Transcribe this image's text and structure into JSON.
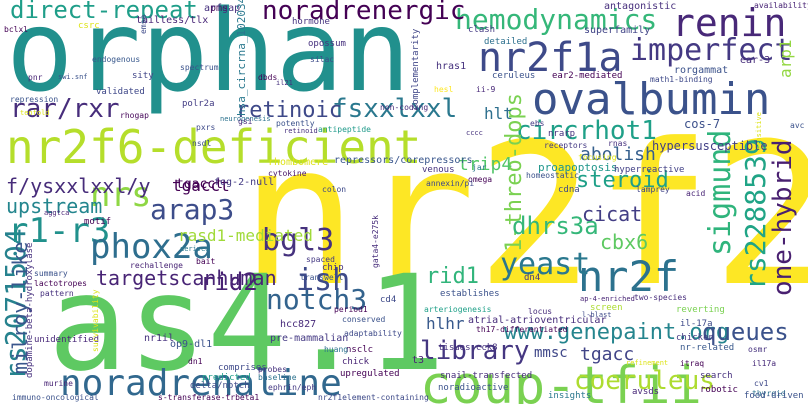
{
  "words": [
    {
      "text": "orphan",
      "color": "#21908d"
    },
    {
      "text": "nr2f2",
      "color": "#fde725"
    },
    {
      "text": "as4.1",
      "color": "#5ec962"
    },
    {
      "text": "nr2f6-deficient",
      "color": "#b5de2b"
    },
    {
      "text": "coup-tfii",
      "color": "#7ad151"
    },
    {
      "text": "ovalbumin",
      "color": "#3b528b"
    },
    {
      "text": "nr2f1a",
      "color": "#3e4a89"
    },
    {
      "text": "noradrenaline",
      "color": "#31688e"
    },
    {
      "text": "renin",
      "color": "#482878"
    },
    {
      "text": "rs2071504",
      "color": "#26828e"
    },
    {
      "text": "nr2f",
      "color": "#2c728e"
    },
    {
      "text": "hemodynamics",
      "color": "#35b779"
    },
    {
      "text": "noradrenergic",
      "color": "#440154"
    },
    {
      "text": "imperfect",
      "color": "#443983"
    },
    {
      "text": "direct-repeat",
      "color": "#1f9e89"
    },
    {
      "text": "fsxxlxxl",
      "color": "#2a788e"
    },
    {
      "text": "retinoic",
      "color": "#3e4989"
    },
    {
      "text": "rar/rxr",
      "color": "#472d7b"
    },
    {
      "text": "circrhot1",
      "color": "#1fa088"
    },
    {
      "text": "nrs",
      "color": "#8fd744"
    },
    {
      "text": "r1-r3",
      "color": "#21918c"
    },
    {
      "text": "arap3",
      "color": "#3d4d8a"
    },
    {
      "text": "bgl3",
      "color": "#46327e"
    },
    {
      "text": "phox2a",
      "color": "#2e6e8e"
    },
    {
      "text": "sigmund",
      "color": "#2fb47c"
    },
    {
      "text": "rs2288539",
      "color": "#20a486"
    },
    {
      "text": "one-hybrid",
      "color": "#481f70"
    },
    {
      "text": "yeast",
      "color": "#2a788e"
    },
    {
      "text": "library",
      "color": "#453781"
    },
    {
      "text": "coeruleus",
      "color": "#addc30"
    },
    {
      "text": "notch3",
      "color": "#33638d"
    },
    {
      "text": "ish",
      "color": "#3e4a89"
    },
    {
      "text": "www.genepaint.org",
      "color": "#25858e"
    },
    {
      "text": "queues",
      "color": "#3b528b"
    },
    {
      "text": "1-threo-dops",
      "color": "#7ad151"
    },
    {
      "text": "steroid",
      "color": "#1fa088"
    },
    {
      "text": "cicat",
      "color": "#433e85"
    },
    {
      "text": "dhrs3a",
      "color": "#35b779"
    },
    {
      "text": "cbx6",
      "color": "#5ec962"
    },
    {
      "text": "rid2",
      "color": "#482173"
    },
    {
      "text": "rid1",
      "color": "#31b57b"
    },
    {
      "text": "f/ysxxlxxl/y",
      "color": "#472c7a"
    },
    {
      "text": "upstream",
      "color": "#24868e"
    },
    {
      "text": "milroy-like",
      "color": "#39568c"
    },
    {
      "text": "targetscanhuman",
      "color": "#482475"
    },
    {
      "text": "rasd1-mediated",
      "color": "#a0da39"
    },
    {
      "text": "tgacct",
      "color": "#440154"
    },
    {
      "text": "trip4",
      "color": "#52c569"
    },
    {
      "text": "abolish",
      "color": "#355f8d"
    },
    {
      "text": "tgacc",
      "color": "#414487"
    },
    {
      "text": "mmsc",
      "color": "#3f4788"
    },
    {
      "text": "hlhr",
      "color": "#38598c"
    },
    {
      "text": "hlt",
      "color": "#2e6f8e"
    },
    {
      "text": "cos-7",
      "color": "#3c508b"
    },
    {
      "text": "arp1",
      "color": "#93d741"
    },
    {
      "text": "hypersusceptible",
      "color": "#424086"
    },
    {
      "text": "pms",
      "color": "#440154"
    },
    {
      "text": "arfgap",
      "color": "#46317e"
    },
    {
      "text": "antagonistic",
      "color": "#472f7d"
    },
    {
      "text": "availability",
      "color": "#482475"
    },
    {
      "text": "superfamily",
      "color": "#414487"
    },
    {
      "text": "rorgammat",
      "color": "#3b528b"
    },
    {
      "text": "ear-3",
      "color": "#472d7b"
    },
    {
      "text": "tailless/tlx",
      "color": "#482677"
    },
    {
      "text": "hsa_circrna_102034",
      "color": "#2a788e"
    },
    {
      "text": "hormone",
      "color": "#46337f"
    },
    {
      "text": "csrc",
      "color": "#dde318"
    },
    {
      "text": "emsa",
      "color": "#3e4a89"
    },
    {
      "text": "endogenous",
      "color": "#38588c"
    },
    {
      "text": "spectrum",
      "color": "#3b528b"
    },
    {
      "text": "opossum",
      "color": "#46307e"
    },
    {
      "text": "silac",
      "color": "#3e4c8a"
    },
    {
      "text": "clash",
      "color": "#443a83"
    },
    {
      "text": "detailed",
      "color": "#2d708e"
    },
    {
      "text": "complementarity",
      "color": "#404688"
    },
    {
      "text": "hras1",
      "color": "#46327e"
    },
    {
      "text": "ceruleus",
      "color": "#3b528b"
    },
    {
      "text": "ear2-mediated",
      "color": "#440154"
    },
    {
      "text": "math1-binding",
      "color": "#3e4989"
    },
    {
      "text": "ii-9",
      "color": "#482878"
    },
    {
      "text": "repression",
      "color": "#3a548c"
    },
    {
      "text": "validated",
      "color": "#3f4889"
    },
    {
      "text": "sity",
      "color": "#404588"
    },
    {
      "text": "polr2a",
      "color": "#433d84"
    },
    {
      "text": "pnr",
      "color": "#482475"
    },
    {
      "text": "pxrs",
      "color": "#3e4a89"
    },
    {
      "text": "neurogenesis",
      "color": "#2c728e"
    },
    {
      "text": "potently",
      "color": "#3b528b"
    },
    {
      "text": "retinoid",
      "color": "#46307e"
    },
    {
      "text": "antipeptide",
      "color": "#1f9a8a"
    },
    {
      "text": "non-coding",
      "color": "#472a7a"
    },
    {
      "text": "hesl",
      "color": "#fde725"
    },
    {
      "text": "nsdl",
      "color": "#3c4f8a"
    },
    {
      "text": "rhogap",
      "color": "#450559"
    },
    {
      "text": "repressors/corepressors",
      "color": "#39568c"
    },
    {
      "text": "tgacct",
      "color": "#440154"
    },
    {
      "text": "rhombomere",
      "color": "#dde318"
    },
    {
      "text": "fog-2-null",
      "color": "#443b84"
    },
    {
      "text": "cytokine",
      "color": "#481467"
    },
    {
      "text": "proapoptosis",
      "color": "#1f968b"
    },
    {
      "text": "hyperreactive",
      "color": "#424086"
    },
    {
      "text": "focusing",
      "color": "#dde318"
    },
    {
      "text": "receptors",
      "color": "#443983"
    },
    {
      "text": "rnas",
      "color": "#46307e"
    },
    {
      "text": "homeostatic",
      "color": "#3b528b"
    },
    {
      "text": "cdna",
      "color": "#3e4a89"
    },
    {
      "text": "lamprey",
      "color": "#414487"
    },
    {
      "text": "acid",
      "color": "#482475"
    },
    {
      "text": "nrarp",
      "color": "#46327e"
    },
    {
      "text": "ebs",
      "color": "#443983"
    },
    {
      "text": "motif",
      "color": "#440154"
    },
    {
      "text": "colon",
      "color": "#3e4a89"
    },
    {
      "text": "jar",
      "color": "#2a788e"
    },
    {
      "text": "omega",
      "color": "#440154"
    },
    {
      "text": "venous",
      "color": "#46327e"
    },
    {
      "text": "annexin/pi",
      "color": "#3f4889"
    },
    {
      "text": "arteriogenesis",
      "color": "#1fa088"
    },
    {
      "text": "establishes",
      "color": "#3b528b"
    },
    {
      "text": "two-species",
      "color": "#472d7b"
    },
    {
      "text": "screen",
      "color": "#addc30"
    },
    {
      "text": "reverting",
      "color": "#7ad151"
    },
    {
      "text": "il-17a",
      "color": "#3e4a89"
    },
    {
      "text": "chicken",
      "color": "#443983"
    },
    {
      "text": "nr-related",
      "color": "#38588c"
    },
    {
      "text": "osmr",
      "color": "#46327e"
    },
    {
      "text": "il17a",
      "color": "#472a7a"
    },
    {
      "text": "refinement",
      "color": "#dde318"
    },
    {
      "text": "itraq",
      "color": "#440154"
    },
    {
      "text": "search",
      "color": "#46307e"
    },
    {
      "text": "robotic",
      "color": "#440154"
    },
    {
      "text": "cv1",
      "color": "#3e4989"
    },
    {
      "text": "thyroid",
      "color": "#2c728e"
    },
    {
      "text": "food-driven",
      "color": "#3b528b"
    },
    {
      "text": "avsds",
      "color": "#482878"
    },
    {
      "text": "insights",
      "color": "#2a788e"
    },
    {
      "text": "nr2f1element-containing",
      "color": "#3e4a89"
    },
    {
      "text": "noradioactive",
      "color": "#3b528b"
    },
    {
      "text": "s-transferase-trbeta1",
      "color": "#440154"
    },
    {
      "text": "immuno-oncological",
      "color": "#3b528b"
    },
    {
      "text": "murine",
      "color": "#482475"
    },
    {
      "text": "dopamine-beta-hydroxylase",
      "color": "#46307e"
    },
    {
      "text": "delta/notch",
      "color": "#3e4a89"
    },
    {
      "text": "baseline",
      "color": "#2c728e"
    },
    {
      "text": "ephrin/eph",
      "color": "#443983"
    },
    {
      "text": "chick",
      "color": "#482475"
    },
    {
      "text": "upregulated",
      "color": "#440154"
    },
    {
      "text": "snail-transfected",
      "color": "#472d7b"
    },
    {
      "text": "comprises",
      "color": "#3e4989"
    },
    {
      "text": "probes",
      "color": "#46327e"
    },
    {
      "text": "predicted",
      "color": "#1f9e89"
    },
    {
      "text": "dn1",
      "color": "#440154"
    },
    {
      "text": "op9-dl1",
      "color": "#3b528b"
    },
    {
      "text": "hcc827",
      "color": "#472a7a"
    },
    {
      "text": "pre-mammalian",
      "color": "#443983"
    },
    {
      "text": "nsclc",
      "color": "#440154"
    },
    {
      "text": "adaptability",
      "color": "#3e4a89"
    },
    {
      "text": "huang",
      "color": "#2c728e"
    },
    {
      "text": "t3",
      "color": "#482475"
    },
    {
      "text": "tisues.cck8",
      "color": "#46327e"
    },
    {
      "text": "th17-differentiated",
      "color": "#440154"
    },
    {
      "text": "atrial-atrioventricular",
      "color": "#472d7b"
    },
    {
      "text": "conserved",
      "color": "#3b528b"
    },
    {
      "text": "period1",
      "color": "#440154"
    },
    {
      "text": "cd4",
      "color": "#3e4a89"
    },
    {
      "text": "chip",
      "color": "#46327e"
    },
    {
      "text": "transwell",
      "color": "#3b528b"
    },
    {
      "text": "spaced",
      "color": "#443983"
    },
    {
      "text": "bait",
      "color": "#440154"
    },
    {
      "text": "rechallenge",
      "color": "#482475"
    },
    {
      "text": "derived",
      "color": "#2a788e"
    },
    {
      "text": "gata4-e275k",
      "color": "#472d7b"
    },
    {
      "text": "nr1il",
      "color": "#46327e"
    },
    {
      "text": "unidentified",
      "color": "#482878"
    },
    {
      "text": "survivability",
      "color": "#dde318"
    },
    {
      "text": "lactotropes",
      "color": "#440154"
    },
    {
      "text": "pattern",
      "color": "#46307e"
    },
    {
      "text": "summary",
      "color": "#3b528b"
    },
    {
      "text": "bclxl",
      "color": "#440154"
    },
    {
      "text": "aggtca",
      "color": "#482475"
    },
    {
      "text": "tenfold",
      "color": "#dde318"
    },
    {
      "text": "gsi",
      "color": "#472d7b"
    },
    {
      "text": "dbds",
      "color": "#440154"
    },
    {
      "text": "il21",
      "color": "#46327e"
    },
    {
      "text": "swi.snf",
      "color": "#3b528b"
    },
    {
      "text": "dn4",
      "color": "#443983"
    },
    {
      "text": "locus",
      "color": "#472d7b"
    },
    {
      "text": "l-blast",
      "color": "#3e4a89"
    },
    {
      "text": "ap-4-enriched",
      "color": "#482475"
    },
    {
      "text": "avc",
      "color": "#3b528b"
    },
    {
      "text": "sensitive",
      "color": "#dde318"
    },
    {
      "text": "cccc",
      "color": "#46327e"
    }
  ]
}
